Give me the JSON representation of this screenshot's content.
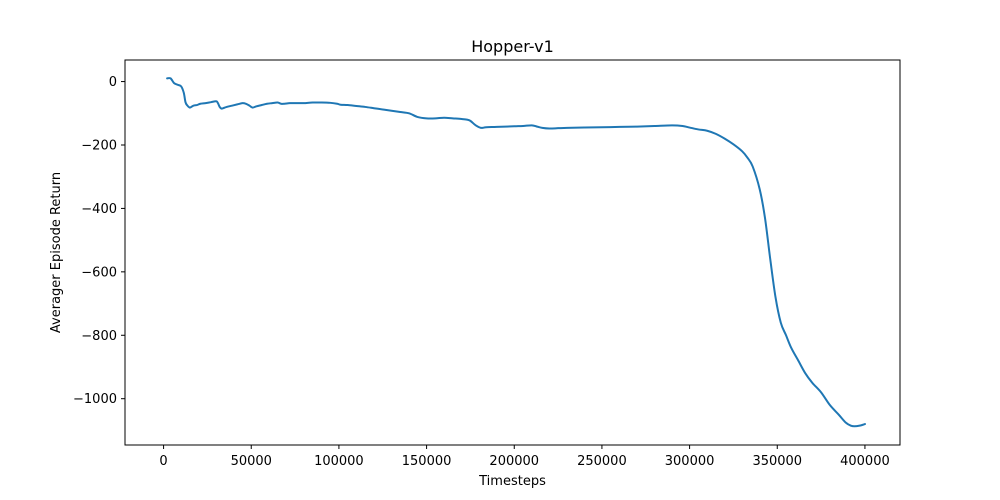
{
  "chart_data": {
    "type": "line",
    "title": "Hopper-v1",
    "xlabel": "Timesteps",
    "ylabel": "Averager Episode Return",
    "xlim": [
      -22000,
      420000
    ],
    "ylim": [
      -1146,
      68
    ],
    "xticks": [
      0,
      50000,
      100000,
      150000,
      200000,
      250000,
      300000,
      350000,
      400000
    ],
    "xtick_labels": [
      "0",
      "50000",
      "100000",
      "150000",
      "200000",
      "250000",
      "300000",
      "350000",
      "400000"
    ],
    "yticks": [
      0,
      -200,
      -400,
      -600,
      -800,
      -1000
    ],
    "ytick_labels": [
      "0",
      "−200",
      "−400",
      "−600",
      "−800",
      "−1000"
    ],
    "grid": false,
    "series": [
      {
        "color": "#1f77b4",
        "x": [
          2000,
          4000,
          6000,
          8000,
          10000,
          11500,
          12500,
          13500,
          15000,
          17000,
          19000,
          21000,
          24000,
          27000,
          30000,
          31000,
          32000,
          33000,
          34000,
          36000,
          39000,
          42000,
          45000,
          47000,
          49000,
          50000,
          51000,
          53000,
          56000,
          59000,
          62000,
          65000,
          67000,
          69000,
          72000,
          76000,
          80000,
          85000,
          90000,
          95000,
          99000,
          101000,
          105000,
          110000,
          115000,
          120000,
          125000,
          130000,
          135000,
          140000,
          145000,
          150000,
          155000,
          160000,
          165000,
          170000,
          173000,
          175000,
          178000,
          181000,
          184000,
          190000,
          200000,
          205000,
          210000,
          213000,
          216000,
          220000,
          225000,
          230000,
          240000,
          250000,
          260000,
          270000,
          280000,
          290000,
          296000,
          300000,
          305000,
          310000,
          315000,
          320000,
          325000,
          330000,
          333000,
          336000,
          340000,
          343000,
          346000,
          349000,
          352000,
          355000,
          358000,
          362000,
          366000,
          370000,
          375000,
          380000,
          385000,
          389000,
          392000,
          394000,
          397000,
          400000
        ],
        "y": [
          10,
          10,
          -5,
          -10,
          -15,
          -35,
          -65,
          -75,
          -82,
          -76,
          -74,
          -70,
          -68,
          -65,
          -62,
          -68,
          -80,
          -85,
          -84,
          -80,
          -76,
          -72,
          -68,
          -70,
          -76,
          -80,
          -82,
          -78,
          -74,
          -70,
          -68,
          -66,
          -70,
          -70,
          -68,
          -68,
          -68,
          -66,
          -66,
          -67,
          -70,
          -73,
          -74,
          -77,
          -80,
          -84,
          -88,
          -92,
          -96,
          -100,
          -112,
          -116,
          -116,
          -114,
          -116,
          -118,
          -120,
          -124,
          -138,
          -146,
          -144,
          -143,
          -141,
          -140,
          -138,
          -142,
          -146,
          -148,
          -147,
          -146,
          -145,
          -144,
          -143,
          -142,
          -140,
          -138,
          -140,
          -145,
          -151,
          -155,
          -165,
          -180,
          -198,
          -220,
          -240,
          -268,
          -340,
          -430,
          -560,
          -680,
          -760,
          -800,
          -840,
          -880,
          -920,
          -950,
          -980,
          -1020,
          -1050,
          -1075,
          -1085,
          -1087,
          -1085,
          -1080
        ]
      }
    ]
  }
}
